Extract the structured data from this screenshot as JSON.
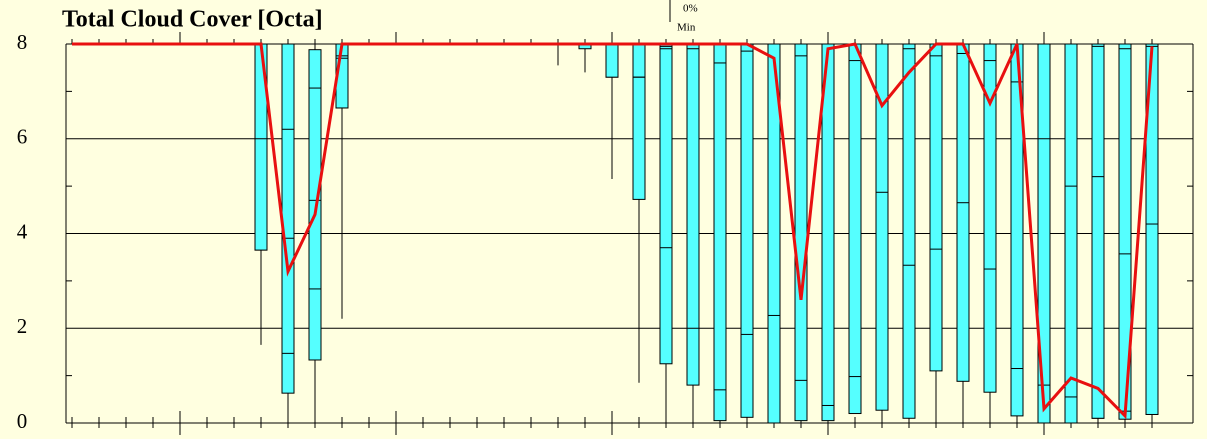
{
  "chart_data": {
    "type": "box",
    "title": "Total Cloud Cover [Octa]",
    "legend_labels": [
      "0%",
      "Min"
    ],
    "categories": [
      null,
      null,
      null,
      null,
      null,
      null,
      null,
      null,
      null,
      null,
      null,
      null,
      null,
      null,
      null,
      null,
      null,
      null,
      null,
      null,
      null,
      null,
      null,
      null,
      null,
      null,
      null,
      null,
      null,
      null,
      null,
      null,
      null,
      null,
      null,
      null,
      null,
      null,
      null,
      null,
      null
    ],
    "box_color": "#55ffff",
    "line_color": "#e81010",
    "min": [
      8,
      8,
      8,
      8,
      8,
      8,
      8,
      1.65,
      0.05,
      0.1,
      2.2,
      8,
      8,
      8,
      8,
      8,
      8,
      8,
      7.55,
      7.4,
      5.15,
      0.85,
      0.1,
      0,
      0,
      0,
      0,
      0,
      0,
      0.2,
      0,
      0,
      0,
      0,
      0,
      0,
      0,
      0,
      0,
      0,
      0
    ],
    "p10": [
      8,
      8,
      8,
      8,
      8,
      8,
      8,
      3.65,
      0.63,
      1.33,
      6.65,
      8,
      8,
      8,
      8,
      8,
      8,
      8,
      8,
      7.9,
      7.3,
      4.72,
      1.25,
      0.8,
      0.05,
      0.12,
      0,
      0.05,
      0.05,
      0.2,
      0.27,
      0.1,
      1.1,
      0.88,
      0.65,
      0.15,
      0,
      0,
      0.1,
      0.08,
      0.18
    ],
    "p25": [
      8,
      8,
      8,
      8,
      8,
      8,
      8,
      3.65,
      1.47,
      2.83,
      6.65,
      8,
      8,
      8,
      8,
      8,
      8,
      8,
      8,
      8,
      7.3,
      7.3,
      3.7,
      2.0,
      0.7,
      1.87,
      2.27,
      0.9,
      0.37,
      0.98,
      4.87,
      3.33,
      3.67,
      4.65,
      3.25,
      1.15,
      0.8,
      0.55,
      0.1,
      0.25,
      0.18
    ],
    "median": [
      8,
      8,
      8,
      8,
      8,
      8,
      8,
      6.0,
      3.9,
      4.7,
      7.7,
      8,
      8,
      8,
      8,
      8,
      8,
      8,
      8,
      8,
      8,
      7.3,
      7.9,
      7.9,
      7.6,
      7.85,
      8,
      7.75,
      8,
      7.65,
      8,
      7.9,
      7.75,
      7.8,
      7.65,
      7.2,
      6.0,
      5.0,
      5.2,
      3.57,
      4.2
    ],
    "p75": [
      8,
      8,
      8,
      8,
      8,
      8,
      8,
      8,
      6.2,
      7.07,
      7.75,
      8,
      8,
      8,
      8,
      8,
      8,
      8,
      8,
      8,
      8,
      8,
      7.95,
      8,
      8,
      8,
      8,
      8,
      8,
      8,
      8,
      8,
      8,
      8,
      8,
      8,
      8,
      8,
      7.95,
      7.9,
      7.95
    ],
    "p90": [
      8,
      8,
      8,
      8,
      8,
      8,
      8,
      8,
      8,
      7.88,
      8,
      8,
      8,
      8,
      8,
      8,
      8,
      8,
      8,
      8,
      8,
      8,
      8,
      8,
      8,
      8,
      8,
      8,
      8,
      8,
      8,
      8,
      8,
      8,
      8,
      8,
      8,
      8,
      8,
      8,
      8
    ],
    "max": [
      8,
      8,
      8,
      8,
      8,
      8,
      8,
      8,
      8,
      8,
      8,
      8,
      8,
      8,
      8,
      8,
      8,
      8,
      8,
      8,
      8,
      8,
      8,
      8,
      8,
      8,
      8,
      8,
      8,
      8,
      8,
      8,
      8,
      8,
      8,
      8,
      8,
      8,
      8,
      8,
      8
    ],
    "line": [
      8,
      8,
      8,
      8,
      8,
      8,
      8,
      8,
      3.2,
      4.4,
      8,
      8,
      8,
      8,
      8,
      8,
      8,
      8,
      8,
      8,
      8,
      8,
      8,
      8,
      8,
      8,
      7.7,
      2.6,
      7.9,
      8,
      6.7,
      7.4,
      8,
      8,
      6.75,
      8,
      0.3,
      0.95,
      0.73,
      0.15,
      7.95
    ],
    "ylim": [
      0,
      8
    ],
    "yticks": [
      0,
      2,
      4,
      6,
      8
    ],
    "yminor": [
      1,
      3,
      5,
      7
    ],
    "grid": true
  }
}
